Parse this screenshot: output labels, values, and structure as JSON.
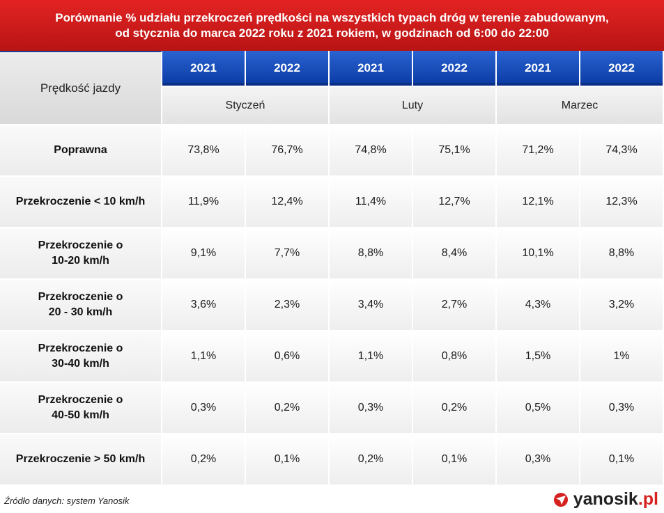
{
  "title": {
    "line1": "Porównanie % udziału przekroczeń prędkości na wszystkich typach dróg w terenie zabudowanym,",
    "line2": "od stycznia do marca 2022 roku z 2021 rokiem, w godzinach od 6:00 do 22:00"
  },
  "table": {
    "row_header": "Prędkość jazdy",
    "years": [
      "2021",
      "2022",
      "2021",
      "2022",
      "2021",
      "2022"
    ],
    "months": [
      "Styczeń",
      "Luty",
      "Marzec"
    ],
    "rows": [
      {
        "label": [
          "Poprawna"
        ],
        "values": [
          "73,8%",
          "76,7%",
          "74,8%",
          "75,1%",
          "71,2%",
          "74,3%"
        ]
      },
      {
        "label": [
          "Przekroczenie < 10 km/h"
        ],
        "values": [
          "11,9%",
          "12,4%",
          "11,4%",
          "12,7%",
          "12,1%",
          "12,3%"
        ]
      },
      {
        "label": [
          "Przekroczenie o",
          "10-20 km/h"
        ],
        "values": [
          "9,1%",
          "7,7%",
          "8,8%",
          "8,4%",
          "10,1%",
          "8,8%"
        ]
      },
      {
        "label": [
          "Przekroczenie o",
          "20 - 30 km/h"
        ],
        "values": [
          "3,6%",
          "2,3%",
          "3,4%",
          "2,7%",
          "4,3%",
          "3,2%"
        ]
      },
      {
        "label": [
          "Przekroczenie o",
          "30-40 km/h"
        ],
        "values": [
          "1,1%",
          "0,6%",
          "1,1%",
          "0,8%",
          "1,5%",
          "1%"
        ]
      },
      {
        "label": [
          "Przekroczenie o",
          "40-50 km/h"
        ],
        "values": [
          "0,3%",
          "0,2%",
          "0,3%",
          "0,2%",
          "0,5%",
          "0,3%"
        ]
      },
      {
        "label": [
          "Przekroczenie > 50 km/h"
        ],
        "values": [
          "0,2%",
          "0,1%",
          "0,2%",
          "0,1%",
          "0,3%",
          "0,1%"
        ]
      }
    ]
  },
  "footer": {
    "source": "Źródło danych: system Yanosik",
    "brand_name": "yanosik",
    "brand_tld": ".pl",
    "brand_icon": "yanosik-logo-icon",
    "accent_color": "#d62121"
  },
  "colors": {
    "title_bg": "#c91b1b",
    "year_header_bg": "#1747b8",
    "grey_header_bg": "#e2e2e2"
  }
}
